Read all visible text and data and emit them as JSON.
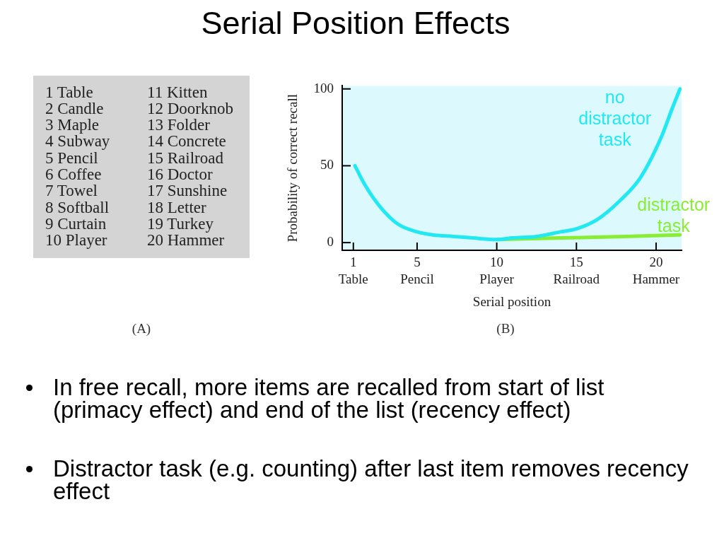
{
  "chart_data": {
    "type": "line",
    "title": "Serial Position Effects",
    "xlabel": "Serial position",
    "ylabel": "Probability of correct recall",
    "series": [
      {
        "name": "no distractor task",
        "color": "#22e8f2",
        "x": [
          1.1,
          1.7,
          2.7,
          3.8,
          5,
          6,
          7.3,
          8.5,
          10,
          11,
          12.5,
          14,
          15,
          16.3,
          17.7,
          19,
          20.3,
          21,
          21.5
        ],
        "values": [
          50,
          38,
          23,
          12,
          7,
          5,
          4,
          3,
          2,
          3,
          4,
          7,
          9,
          15,
          27,
          42,
          68,
          87,
          100
        ]
      },
      {
        "name": "distractor task",
        "color": "#88ee33",
        "x": [
          10,
          14,
          18,
          21.5
        ],
        "values": [
          2,
          3,
          4,
          5
        ]
      }
    ],
    "xlim": [
      0.3,
      21.6
    ],
    "xticks": [
      {
        "value": 1,
        "label": "1\nTable"
      },
      {
        "value": 5,
        "label": "5\nPencil"
      },
      {
        "value": 10,
        "label": "10\nPlayer"
      },
      {
        "value": 15,
        "label": "15\nRailroad"
      },
      {
        "value": 20,
        "label": "20\nHammer"
      }
    ],
    "ylim": [
      -5,
      102
    ],
    "yticks": [
      0,
      50,
      100
    ],
    "grid": false,
    "marker": "none",
    "line_style": "solid",
    "annotations": [
      "1 Table",
      "2 Candle",
      "3 Maple",
      "4 Subway",
      "5 Pencil",
      "6 Coffee",
      "7 Towel",
      "8 Softball",
      "9 Curtain",
      "10 Player",
      "11 Kitten",
      "12 Doorknob",
      "13 Folder",
      "14 Concrete",
      "15 Railroad",
      "16 Doctor",
      "17 Sunshine",
      "18 Letter",
      "19 Turkey",
      "20 Hammer",
      "(A)",
      "(B)",
      "In free recall, more items are recalled from start of list (primacy effect) and end of the list (recency effect)",
      "Distractor task (e.g. counting) after last item removes recency effect"
    ]
  }
}
